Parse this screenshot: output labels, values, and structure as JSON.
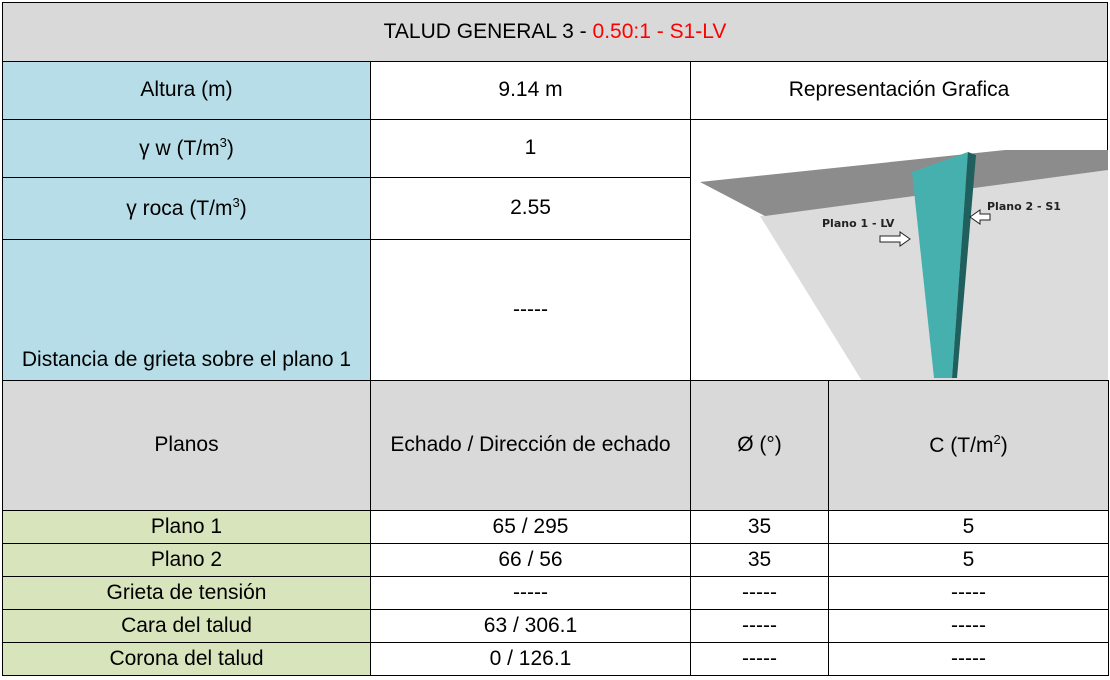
{
  "title": [
    "TALUD GENERAL 3 - ",
    "0.50:1 - S1-LV"
  ],
  "properties": [
    {
      "label": "Altura (m)",
      "value": "9.14 m"
    },
    {
      "label": {
        "text": "γ w (T/m",
        "sup": "3",
        "after": ")"
      },
      "value": "1"
    },
    {
      "label": {
        "text": "γ roca (T/m",
        "sup": "3",
        "after": ")"
      },
      "value": "2.55"
    },
    {
      "label": "Distancia de grieta sobre el plano 1",
      "value": "-----"
    }
  ],
  "figure": {
    "title": "Representación Grafica",
    "labels": [
      "Plano 1 - LV",
      "Plano 2 - S1"
    ]
  },
  "planes_table": {
    "headers": [
      "Planos",
      "Echado / Dirección de echado",
      "Ø (°)",
      {
        "text": "C (T/m",
        "sup": "2",
        "after": ")"
      }
    ],
    "rows": [
      [
        "Plano 1",
        "65 / 295",
        "35",
        "5"
      ],
      [
        "Plano 2",
        "66 / 56",
        "35",
        "5"
      ],
      [
        "Grieta de tensión",
        "-----",
        "-----",
        "-----"
      ],
      [
        "Cara del talud",
        "63 / 306.1",
        "-----",
        "-----"
      ],
      [
        "Corona del talud",
        "0 / 126.1",
        "-----",
        "-----"
      ]
    ]
  }
}
